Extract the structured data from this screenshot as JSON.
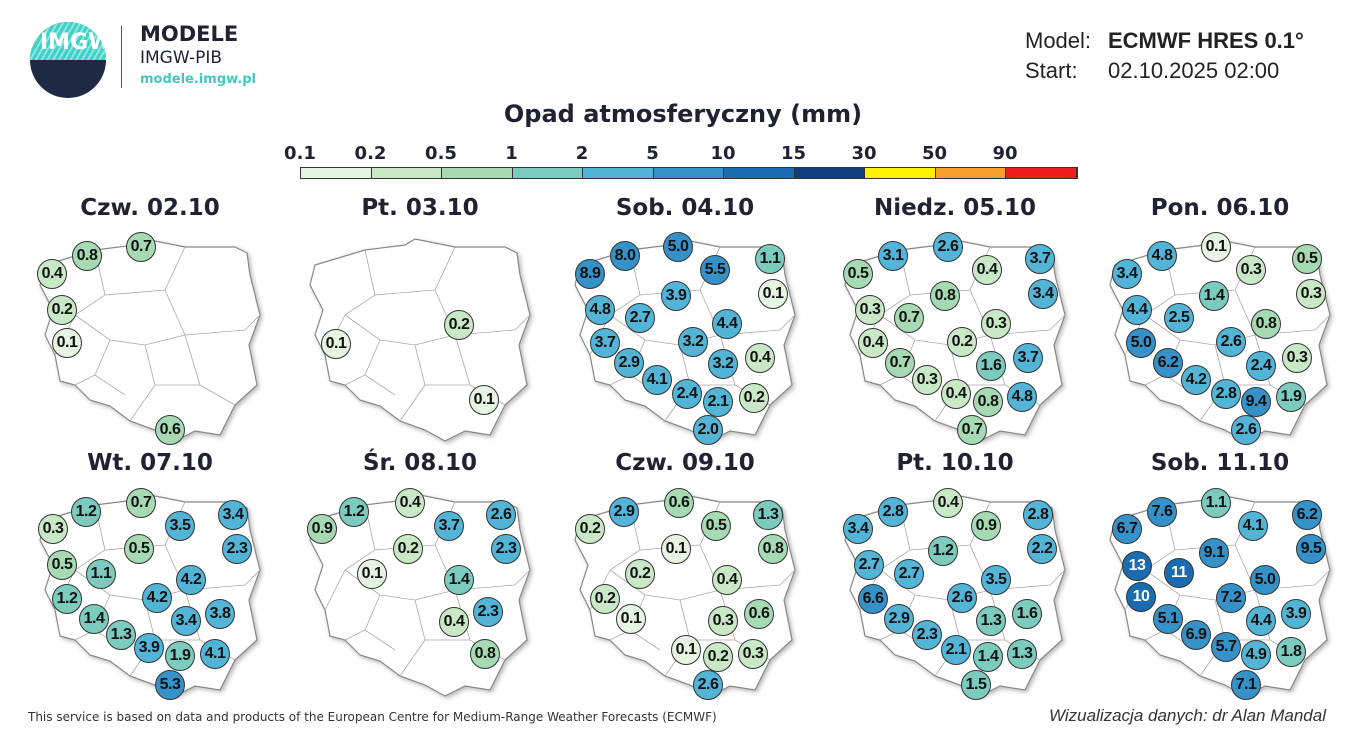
{
  "header": {
    "logo_text": "IMGW",
    "brand_title": "MODELE",
    "brand_sub": "IMGW-PIB",
    "brand_url": "modele.imgw.pl",
    "model_label": "Model:",
    "model_value": "ECMWF HRES 0.1°",
    "start_label": "Start:",
    "start_value": "02.10.2025 02:00"
  },
  "legend": {
    "title": "Opad atmosferyczny (mm)",
    "ticks": [
      "0.1",
      "0.2",
      "0.5",
      "1",
      "2",
      "5",
      "10",
      "15",
      "30",
      "50",
      "90"
    ],
    "colors": [
      "#e6f4e2",
      "#c9e9c6",
      "#a5dab3",
      "#7ccbbf",
      "#52b5d8",
      "#3592c9",
      "#1a6cb0",
      "#0f3f7d",
      "#fff200",
      "#f7a12a",
      "#ee1c1c"
    ]
  },
  "panels": [
    {
      "title": "Czw. 02.10",
      "values": [
        "0.8",
        "0.7",
        "0.4",
        "0.2",
        "0.1",
        "0.6"
      ]
    },
    {
      "title": "Pt. 03.10",
      "values": [
        "0.2",
        "0.1",
        "0.1"
      ]
    },
    {
      "title": "Sob. 04.10",
      "values": [
        "8.0",
        "5.0",
        "1.1",
        "8.9",
        "5.5",
        "0.1",
        "4.8",
        "2.7",
        "3.9",
        "4.4",
        "3.7",
        "3.2",
        "2.9",
        "3.2",
        "0.4",
        "4.1",
        "2.4",
        "2.1",
        "0.2",
        "2.0"
      ]
    },
    {
      "title": "Niedz. 05.10",
      "values": [
        "3.1",
        "2.6",
        "3.7",
        "0.5",
        "0.4",
        "3.4",
        "0.8",
        "0.3",
        "0.7",
        "0.3",
        "0.2",
        "0.4",
        "3.7",
        "0.7",
        "1.6",
        "0.3",
        "0.4",
        "0.8",
        "4.8",
        "0.7"
      ]
    },
    {
      "title": "Pon. 06.10",
      "values": [
        "4.8",
        "0.1",
        "0.5",
        "3.4",
        "0.3",
        "0.3",
        "4.4",
        "1.4",
        "2.5",
        "0.8",
        "2.6",
        "5.0",
        "0.3",
        "6.2",
        "2.4",
        "4.2",
        "2.8",
        "9.4",
        "1.9",
        "2.6"
      ]
    },
    {
      "title": "Wt. 07.10",
      "values": [
        "1.2",
        "0.7",
        "3.4",
        "0.3",
        "3.5",
        "2.3",
        "0.5",
        "0.5",
        "1.1",
        "4.2",
        "1.2",
        "4.2",
        "1.4",
        "3.4",
        "3.8",
        "1.3",
        "3.9",
        "1.9",
        "4.1",
        "5.3"
      ]
    },
    {
      "title": "Śr. 08.10",
      "values": [
        "1.2",
        "0.4",
        "2.6",
        "0.9",
        "3.7",
        "2.3",
        "0.2",
        "0.1",
        "1.4",
        "2.3",
        "0.4",
        "0.8"
      ]
    },
    {
      "title": "Czw. 09.10",
      "values": [
        "2.9",
        "0.6",
        "1.3",
        "0.2",
        "0.5",
        "0.8",
        "0.1",
        "0.2",
        "0.4",
        "0.2",
        "0.1",
        "0.3",
        "0.6",
        "0.1",
        "0.2",
        "0.3",
        "2.6"
      ]
    },
    {
      "title": "Pt. 10.10",
      "values": [
        "2.8",
        "0.4",
        "2.8",
        "3.4",
        "0.9",
        "2.2",
        "1.2",
        "2.7",
        "2.7",
        "3.5",
        "6.6",
        "2.6",
        "1.3",
        "1.6",
        "2.9",
        "2.3",
        "2.1",
        "1.4",
        "1.3",
        "1.5"
      ]
    },
    {
      "title": "Sob. 11.10",
      "values": [
        "7.6",
        "1.1",
        "6.2",
        "6.7",
        "4.1",
        "9.5",
        "9.1",
        "13",
        "11",
        "5.0",
        "10",
        "7.2",
        "5.1",
        "4.4",
        "3.9",
        "6.9",
        "5.7",
        "4.9",
        "1.8",
        "7.1"
      ]
    }
  ],
  "footer": {
    "credit": "This service is based on data and products of the European Centre for Medium-Range Weather Forecasts (ECMWF)",
    "author": "Wizualizacja danych: dr Alan Mandal"
  }
}
